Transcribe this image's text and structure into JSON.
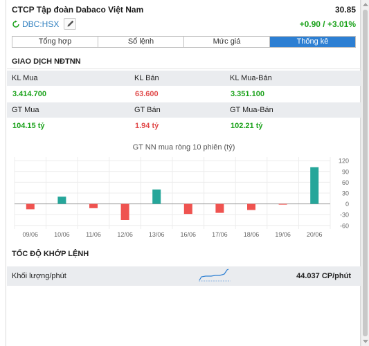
{
  "header": {
    "company_name": "CTCP Tập đoàn Dabaco Việt Nam",
    "price": "30.85",
    "ticker": "DBC:HSX",
    "change": "+0.90 / +3.01%"
  },
  "tabs": [
    {
      "label": "Tổng hợp",
      "active": false
    },
    {
      "label": "Sổ lệnh",
      "active": false
    },
    {
      "label": "Mức giá",
      "active": false
    },
    {
      "label": "Thống kê",
      "active": true
    }
  ],
  "foreign_trading": {
    "title": "GIAO DỊCH NĐTNN",
    "rows": [
      {
        "labels": [
          "KL Mua",
          "KL Bán",
          "KL Mua-Bán"
        ],
        "values": [
          "3.414.700",
          "63.600",
          "3.351.100"
        ],
        "value_colors": [
          "green",
          "red",
          "green"
        ]
      },
      {
        "labels": [
          "GT Mua",
          "GT Bán",
          "GT Mua-Bán"
        ],
        "values": [
          "104.15 tỷ",
          "1.94 tỷ",
          "102.21 tỷ"
        ],
        "value_colors": [
          "green",
          "red",
          "green"
        ]
      }
    ]
  },
  "chart_data": {
    "type": "bar",
    "title": "GT NN mua ròng 10 phiên (tỷ)",
    "categories": [
      "09/06",
      "10/06",
      "11/06",
      "12/06",
      "13/06",
      "16/06",
      "17/06",
      "18/06",
      "19/06",
      "20/06"
    ],
    "values": [
      -15,
      20,
      -12,
      -45,
      40,
      -28,
      -25,
      -17,
      -2,
      102
    ],
    "ylim": [
      -70,
      130
    ],
    "yticks": [
      120,
      90,
      60,
      30,
      0,
      -30,
      -60
    ],
    "positive_color": "#26a69a",
    "negative_color": "#ef5350",
    "grid": true
  },
  "match_speed": {
    "title": "TỐC ĐỘ KHỚP LỆNH",
    "label": "Khối lượng/phút",
    "value": "44.037 CP/phút"
  },
  "colors": {
    "accent": "#2c7fd3",
    "up": "#1aa21a",
    "down": "#e14b4b"
  }
}
